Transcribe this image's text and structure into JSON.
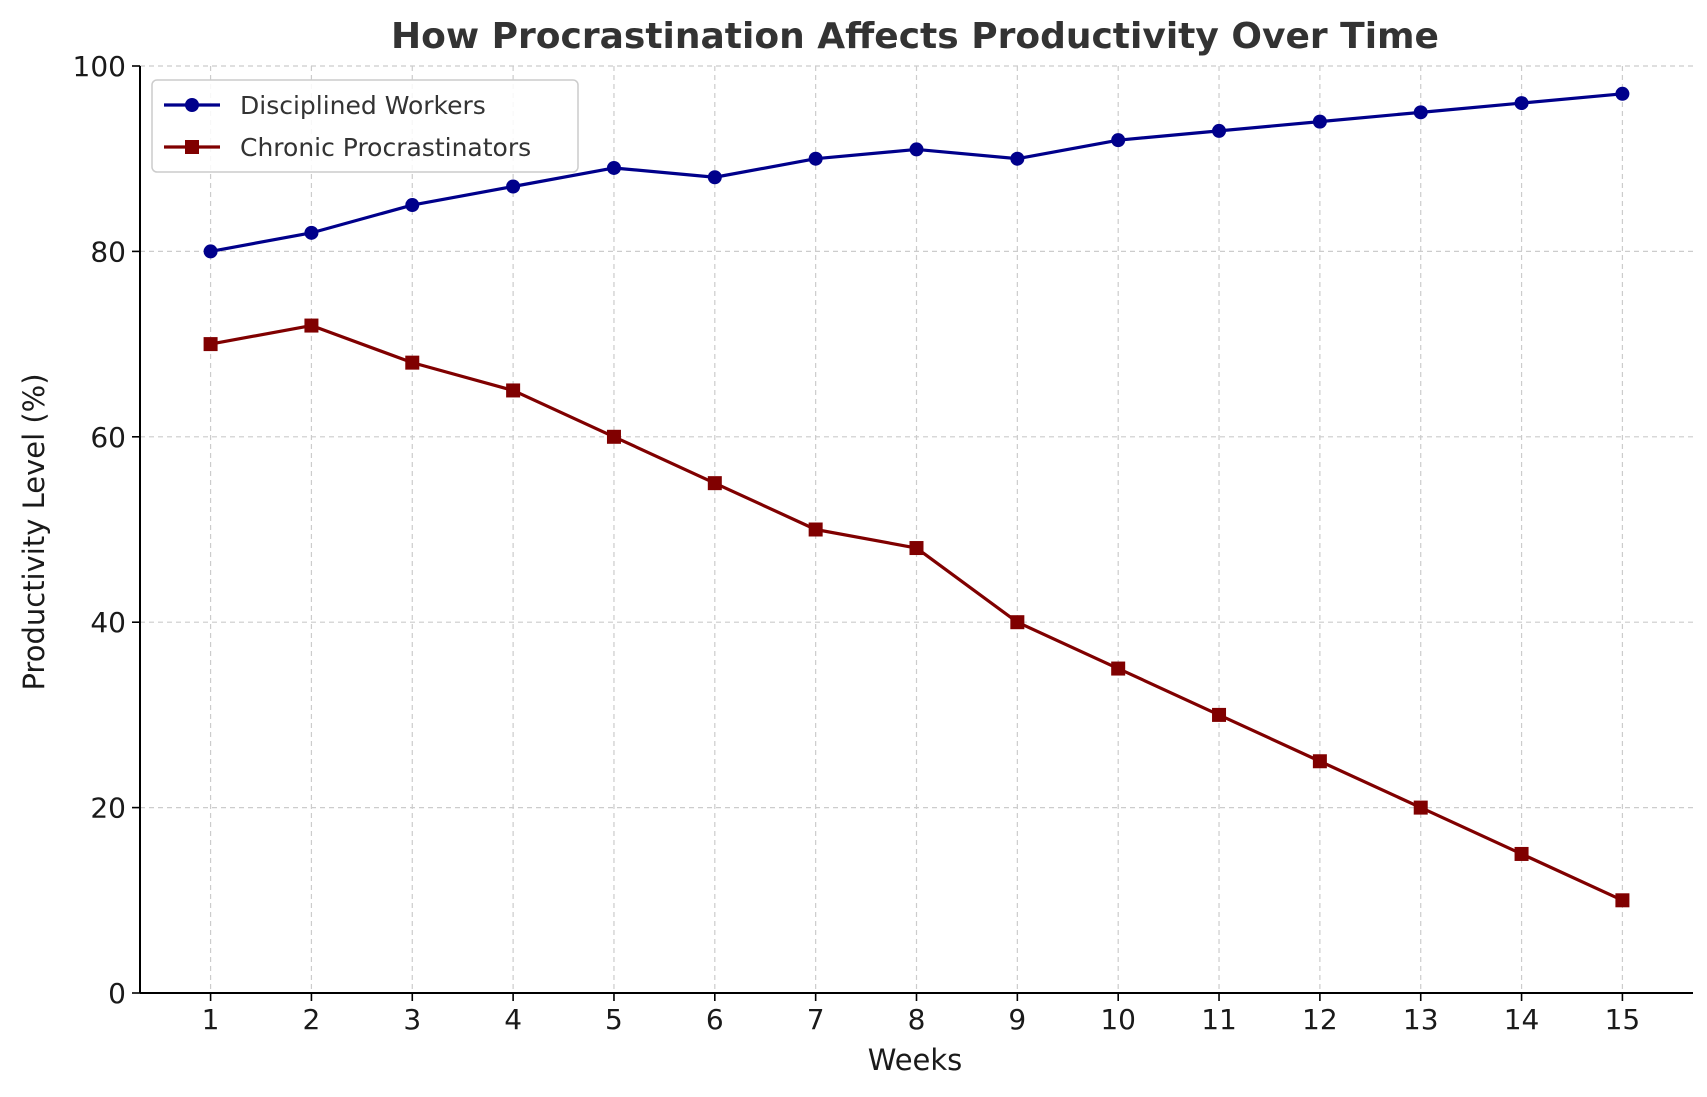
{
  "chart_data": {
    "type": "line",
    "title": "How Procrastination Affects Productivity Over Time",
    "xlabel": "Weeks",
    "ylabel": "Productivity Level (%)",
    "x": [
      1,
      2,
      3,
      4,
      5,
      6,
      7,
      8,
      9,
      10,
      11,
      12,
      13,
      14,
      15
    ],
    "xlim": [
      0.3,
      15.7
    ],
    "ylim": [
      0,
      100
    ],
    "yticks": [
      0,
      20,
      40,
      60,
      80,
      100
    ],
    "grid": true,
    "legend_position": "top-left",
    "series": [
      {
        "name": "Disciplined Workers",
        "color": "#00008b",
        "marker": "circle",
        "values": [
          80,
          82,
          85,
          87,
          89,
          88,
          90,
          91,
          90,
          92,
          93,
          94,
          95,
          96,
          97
        ]
      },
      {
        "name": "Chronic Procrastinators",
        "color": "#800000",
        "marker": "square",
        "values": [
          70,
          72,
          68,
          65,
          60,
          55,
          50,
          48,
          40,
          35,
          30,
          25,
          20,
          15,
          10
        ]
      }
    ]
  }
}
